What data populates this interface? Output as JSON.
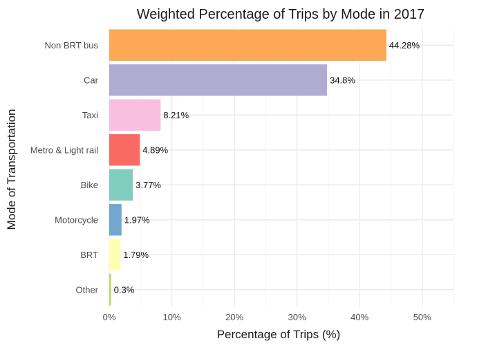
{
  "chart_data": {
    "type": "bar",
    "orientation": "horizontal",
    "title": "Weighted Percentage of Trips by Mode in 2017",
    "xlabel": "Percentage of Trips (%)",
    "ylabel": "Mode of Transportation",
    "xlim": [
      0,
      55
    ],
    "x_ticks": [
      0,
      10,
      20,
      30,
      40,
      50
    ],
    "x_tick_labels": [
      "0%",
      "10%",
      "20%",
      "30%",
      "40%",
      "50%"
    ],
    "grid": true,
    "legend": "none",
    "categories": [
      "Non BRT bus",
      "Car",
      "Taxi",
      "Metro & Light rail",
      "Bike",
      "Motorcycle",
      "BRT",
      "Other"
    ],
    "values": [
      44.28,
      34.8,
      8.21,
      4.89,
      3.77,
      1.97,
      1.79,
      0.3
    ],
    "data_labels": [
      "44.28%",
      "34.8%",
      "8.21%",
      "4.89%",
      "3.77%",
      "1.97%",
      "1.79%",
      "0.3%"
    ],
    "colors": [
      "#FDA855",
      "#B0ACD1",
      "#F9BFE0",
      "#F96B62",
      "#80CDBB",
      "#72A8D0",
      "#FFFFB3",
      "#B3DE69"
    ]
  }
}
